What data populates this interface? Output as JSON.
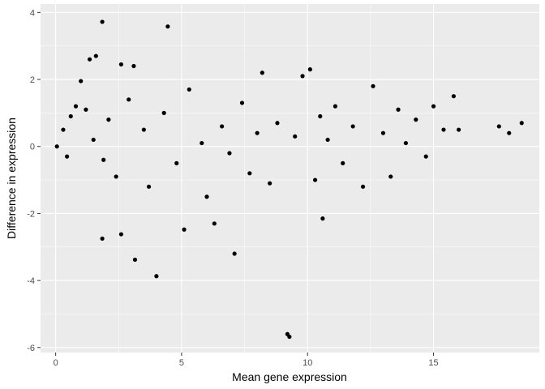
{
  "chart_data": {
    "type": "scatter",
    "title": "",
    "xlabel": "Mean gene expression",
    "ylabel": "Difference in expression",
    "xlim": [
      -0.6,
      19.2
    ],
    "ylim": [
      -6.15,
      4.25
    ],
    "xticks": [
      0,
      5,
      10,
      15
    ],
    "yticks": [
      -6,
      -4,
      -2,
      0,
      2,
      4
    ],
    "x_tick_labels": [
      "0",
      "5",
      "10",
      "15"
    ],
    "y_tick_labels": [
      "-6",
      "-4",
      "-2",
      "0",
      "2",
      "4"
    ],
    "grid": true,
    "panel_color": "#ebebeb",
    "grid_color": "#ffffff",
    "point_color": "#000000",
    "points": [
      [
        0.05,
        0.0
      ],
      [
        0.3,
        0.5
      ],
      [
        0.45,
        -0.3
      ],
      [
        0.6,
        0.9
      ],
      [
        0.8,
        1.2
      ],
      [
        1.0,
        1.95
      ],
      [
        1.2,
        1.1
      ],
      [
        1.35,
        2.6
      ],
      [
        1.5,
        0.2
      ],
      [
        1.6,
        2.7
      ],
      [
        1.85,
        3.72
      ],
      [
        1.9,
        -0.4
      ],
      [
        1.85,
        -2.75
      ],
      [
        2.1,
        0.8
      ],
      [
        2.4,
        -0.9
      ],
      [
        2.6,
        2.45
      ],
      [
        2.6,
        -2.62
      ],
      [
        2.9,
        1.4
      ],
      [
        3.1,
        2.4
      ],
      [
        3.15,
        -3.38
      ],
      [
        3.5,
        0.5
      ],
      [
        3.7,
        -1.2
      ],
      [
        4.0,
        -3.87
      ],
      [
        4.3,
        1.0
      ],
      [
        4.45,
        3.58
      ],
      [
        4.8,
        -0.5
      ],
      [
        5.1,
        -2.48
      ],
      [
        5.3,
        1.7
      ],
      [
        5.8,
        0.1
      ],
      [
        6.0,
        -1.5
      ],
      [
        6.3,
        -2.3
      ],
      [
        6.6,
        0.6
      ],
      [
        6.9,
        -0.2
      ],
      [
        7.1,
        -3.2
      ],
      [
        7.4,
        1.3
      ],
      [
        7.7,
        -0.8
      ],
      [
        8.0,
        0.4
      ],
      [
        8.2,
        2.2
      ],
      [
        8.5,
        -1.1
      ],
      [
        8.8,
        0.7
      ],
      [
        9.2,
        -5.6
      ],
      [
        9.28,
        -5.68
      ],
      [
        9.5,
        0.3
      ],
      [
        9.8,
        2.1
      ],
      [
        10.1,
        2.3
      ],
      [
        10.3,
        -1.0
      ],
      [
        10.5,
        0.9
      ],
      [
        10.6,
        -2.15
      ],
      [
        10.8,
        0.2
      ],
      [
        11.1,
        1.2
      ],
      [
        11.4,
        -0.5
      ],
      [
        11.8,
        0.6
      ],
      [
        12.2,
        -1.2
      ],
      [
        12.6,
        1.8
      ],
      [
        13.0,
        0.4
      ],
      [
        13.3,
        -0.9
      ],
      [
        13.6,
        1.1
      ],
      [
        13.9,
        0.1
      ],
      [
        14.3,
        0.8
      ],
      [
        14.7,
        -0.3
      ],
      [
        15.0,
        1.2
      ],
      [
        15.4,
        0.5
      ],
      [
        15.8,
        1.5
      ],
      [
        16.0,
        0.5
      ],
      [
        17.6,
        0.6
      ],
      [
        18.0,
        0.4
      ],
      [
        18.5,
        0.7
      ]
    ]
  }
}
